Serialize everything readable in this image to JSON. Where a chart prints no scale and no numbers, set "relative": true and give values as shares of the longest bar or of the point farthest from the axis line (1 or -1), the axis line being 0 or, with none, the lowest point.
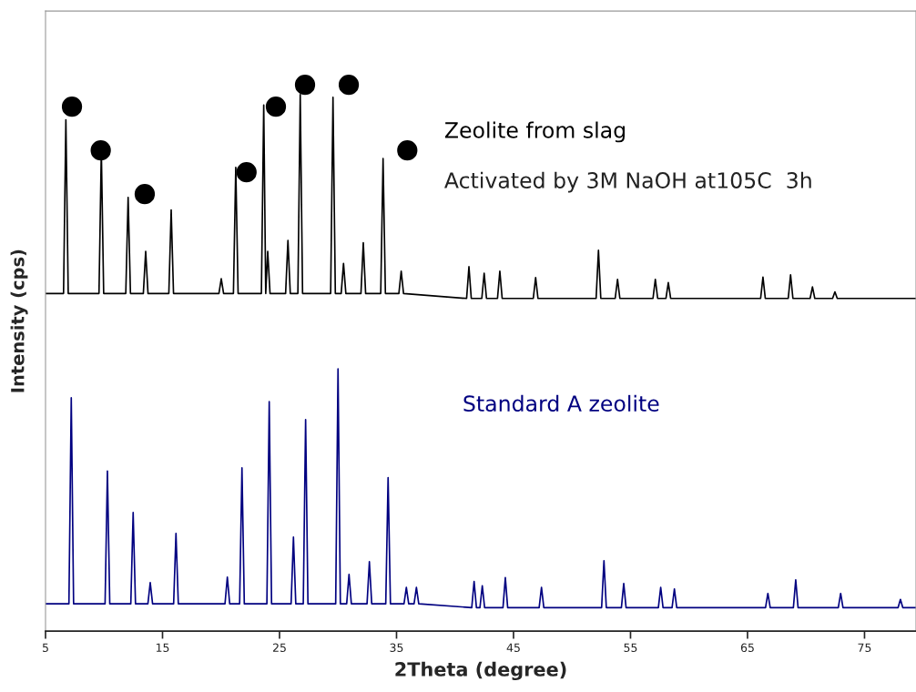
{
  "chart_data": {
    "type": "line",
    "relative": true,
    "xlabel": "2Theta (degree)",
    "ylabel": "Intensity (cps)",
    "xlim": [
      5,
      79.4
    ],
    "xticks": [
      5,
      15,
      25,
      35,
      45,
      55,
      65,
      75
    ],
    "grid": false,
    "legend": false,
    "annotations": [
      "Activated by 3M NaOH at105C  3h"
    ],
    "series": [
      {
        "name": "Zeolite from slag",
        "color": "#000000",
        "x": [
          5.0,
          6.54,
          6.74,
          6.94,
          9.57,
          9.77,
          9.97,
          11.86,
          12.06,
          12.26,
          13.36,
          13.56,
          13.76,
          15.54,
          15.74,
          15.94,
          19.82,
          20.02,
          20.22,
          21.06,
          21.26,
          21.46,
          23.45,
          23.65,
          23.82,
          23.99,
          24.19,
          25.52,
          25.72,
          25.92,
          26.57,
          26.77,
          26.97,
          29.37,
          29.57,
          29.77,
          30.27,
          30.47,
          30.67,
          31.96,
          32.16,
          32.36,
          33.65,
          33.85,
          34.05,
          35.2,
          35.4,
          35.6,
          40.99,
          41.19,
          41.39,
          42.29,
          42.49,
          42.69,
          43.63,
          43.83,
          44.03,
          46.69,
          46.89,
          47.09,
          52.06,
          52.26,
          52.46,
          53.69,
          53.89,
          54.09,
          56.92,
          57.12,
          57.32,
          58.03,
          58.23,
          58.43,
          66.12,
          66.32,
          66.52,
          68.48,
          68.68,
          68.88,
          70.35,
          70.55,
          70.75,
          72.27,
          72.47,
          72.67,
          79.4
        ],
        "values": [
          0.618,
          0.618,
          0.936,
          0.618,
          0.618,
          0.88,
          0.618,
          0.618,
          0.794,
          0.618,
          0.618,
          0.695,
          0.618,
          0.618,
          0.771,
          0.618,
          0.618,
          0.645,
          0.618,
          0.618,
          0.849,
          0.618,
          0.618,
          0.963,
          0.618,
          0.695,
          0.618,
          0.618,
          0.715,
          0.618,
          0.618,
          0.982,
          0.618,
          0.618,
          0.977,
          0.618,
          0.618,
          0.673,
          0.618,
          0.618,
          0.711,
          0.618,
          0.618,
          0.865,
          0.618,
          0.618,
          0.659,
          0.618,
          0.609,
          0.667,
          0.609,
          0.609,
          0.655,
          0.609,
          0.609,
          0.659,
          0.609,
          0.609,
          0.647,
          0.609,
          0.609,
          0.697,
          0.609,
          0.609,
          0.644,
          0.609,
          0.609,
          0.644,
          0.609,
          0.609,
          0.638,
          0.609,
          0.609,
          0.648,
          0.609,
          0.609,
          0.652,
          0.609,
          0.609,
          0.63,
          0.609,
          0.609,
          0.621,
          0.609,
          0.609
        ]
      },
      {
        "name": "Standard A zeolite",
        "color": "#000080",
        "x": [
          5.0,
          7.0,
          7.2,
          7.4,
          10.09,
          10.29,
          10.49,
          12.29,
          12.49,
          12.69,
          13.75,
          13.95,
          14.15,
          15.95,
          16.15,
          16.35,
          20.34,
          20.54,
          20.74,
          21.59,
          21.79,
          21.99,
          23.92,
          24.12,
          24.32,
          25.99,
          26.19,
          26.39,
          27.03,
          27.23,
          27.43,
          29.8,
          30.0,
          30.2,
          30.74,
          30.94,
          31.14,
          32.48,
          32.68,
          32.88,
          34.08,
          34.28,
          34.48,
          35.64,
          35.84,
          36.04,
          36.5,
          36.7,
          36.9,
          41.43,
          41.63,
          41.83,
          42.13,
          42.33,
          42.53,
          44.1,
          44.3,
          44.5,
          47.19,
          47.39,
          47.59,
          52.53,
          52.73,
          52.93,
          54.22,
          54.42,
          54.62,
          57.38,
          57.58,
          57.78,
          58.55,
          58.75,
          58.95,
          66.54,
          66.74,
          66.94,
          68.92,
          69.12,
          69.32,
          72.76,
          72.96,
          73.16,
          77.87,
          78.07,
          78.27,
          79.4
        ],
        "values": [
          0.05,
          0.05,
          0.427,
          0.05,
          0.05,
          0.293,
          0.05,
          0.05,
          0.217,
          0.05,
          0.05,
          0.089,
          0.05,
          0.05,
          0.179,
          0.05,
          0.05,
          0.099,
          0.05,
          0.05,
          0.299,
          0.05,
          0.05,
          0.42,
          0.05,
          0.05,
          0.172,
          0.05,
          0.05,
          0.387,
          0.05,
          0.05,
          0.48,
          0.05,
          0.05,
          0.104,
          0.05,
          0.05,
          0.127,
          0.05,
          0.05,
          0.281,
          0.05,
          0.05,
          0.08,
          0.05,
          0.05,
          0.08,
          0.05,
          0.043,
          0.091,
          0.043,
          0.043,
          0.083,
          0.043,
          0.043,
          0.098,
          0.043,
          0.043,
          0.08,
          0.043,
          0.043,
          0.129,
          0.043,
          0.043,
          0.087,
          0.043,
          0.043,
          0.08,
          0.043,
          0.043,
          0.077,
          0.043,
          0.043,
          0.069,
          0.043,
          0.043,
          0.094,
          0.043,
          0.043,
          0.069,
          0.043,
          0.043,
          0.058,
          0.043,
          0.043
        ]
      },
      {
        "type": "scatter",
        "marker": "circle",
        "color": "#000000",
        "x": [
          7.26,
          9.72,
          13.48,
          22.18,
          24.69,
          27.18,
          30.92,
          35.92
        ],
        "values": [
          0.96,
          0.88,
          0.8,
          0.84,
          0.96,
          1.0,
          1.0,
          0.88
        ]
      }
    ]
  }
}
